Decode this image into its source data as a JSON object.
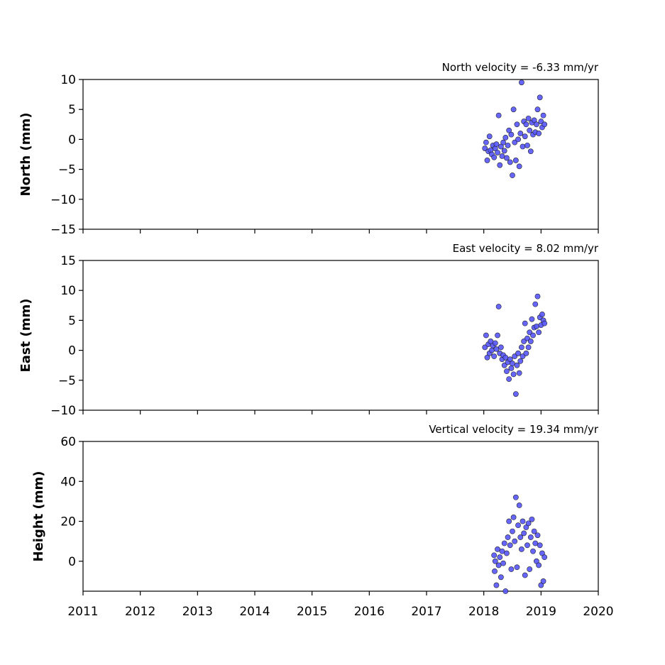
{
  "chart_data": [
    {
      "type": "scatter",
      "annotation": "North velocity = -6.33 mm/yr",
      "ylabel": "North (mm)",
      "color": "#5555ff",
      "xlim": [
        2011,
        2020
      ],
      "xticks": [
        2011,
        2012,
        2013,
        2014,
        2015,
        2016,
        2017,
        2018,
        2019,
        2020
      ],
      "show_xtick_labels": false,
      "ylim": [
        -15,
        10
      ],
      "yticks": [
        {
          "value": -15,
          "label": "−15"
        },
        {
          "value": -10,
          "label": "−10"
        },
        {
          "value": -5,
          "label": "−5"
        },
        0,
        5,
        10
      ],
      "x": [
        2018.02,
        2018.04,
        2018.06,
        2018.08,
        2018.1,
        2018.12,
        2018.14,
        2018.16,
        2018.18,
        2018.2,
        2018.22,
        2018.24,
        2018.26,
        2018.28,
        2018.3,
        2018.32,
        2018.34,
        2018.36,
        2018.38,
        2018.4,
        2018.42,
        2018.44,
        2018.46,
        2018.48,
        2018.5,
        2018.52,
        2018.54,
        2018.56,
        2018.58,
        2018.6,
        2018.62,
        2018.64,
        2018.66,
        2018.68,
        2018.7,
        2018.72,
        2018.74,
        2018.76,
        2018.78,
        2018.8,
        2018.82,
        2018.84,
        2018.86,
        2018.88,
        2018.9,
        2018.92,
        2018.94,
        2018.96,
        2018.98,
        2019.0,
        2019.02,
        2019.04,
        2019.06
      ],
      "values": [
        -1.5,
        -0.5,
        -3.5,
        -2,
        0.5,
        -1.8,
        -2.5,
        -1,
        -3,
        -1.5,
        -0.8,
        -2.2,
        4,
        -4.3,
        -1.2,
        -2.8,
        -0.5,
        -1.9,
        0.3,
        -3.1,
        -1,
        1.5,
        -3.8,
        0.8,
        -6,
        5,
        -0.5,
        -3.5,
        2.5,
        0,
        -4.5,
        1,
        9.5,
        -1.2,
        3,
        0.5,
        2.5,
        -1,
        3.5,
        1.5,
        -2,
        2.8,
        0.8,
        3.2,
        1.2,
        2.5,
        5,
        1,
        7,
        3,
        2,
        4,
        2.5
      ]
    },
    {
      "type": "scatter",
      "annotation": "East velocity = 8.02 mm/yr",
      "ylabel": "East (mm)",
      "color": "#5555ff",
      "xlim": [
        2011,
        2020
      ],
      "xticks": [
        2011,
        2012,
        2013,
        2014,
        2015,
        2016,
        2017,
        2018,
        2019,
        2020
      ],
      "show_xtick_labels": false,
      "ylim": [
        -10,
        15
      ],
      "yticks": [
        {
          "value": -10,
          "label": "−10"
        },
        {
          "value": -5,
          "label": "−5"
        },
        0,
        5,
        10,
        15
      ],
      "x": [
        2018.02,
        2018.04,
        2018.06,
        2018.08,
        2018.1,
        2018.12,
        2018.14,
        2018.16,
        2018.18,
        2018.2,
        2018.22,
        2018.24,
        2018.26,
        2018.28,
        2018.3,
        2018.32,
        2018.34,
        2018.36,
        2018.38,
        2018.4,
        2018.42,
        2018.44,
        2018.46,
        2018.48,
        2018.5,
        2018.52,
        2018.54,
        2018.56,
        2018.58,
        2018.6,
        2018.62,
        2018.64,
        2018.66,
        2018.68,
        2018.7,
        2018.72,
        2018.74,
        2018.76,
        2018.78,
        2018.8,
        2018.82,
        2018.84,
        2018.86,
        2018.88,
        2018.9,
        2018.92,
        2018.94,
        2018.96,
        2018.98,
        2019.0,
        2019.02,
        2019.04,
        2019.06
      ],
      "values": [
        0.5,
        2.5,
        -1.2,
        1,
        -0.5,
        1.5,
        0,
        0.8,
        -1,
        1.2,
        0.2,
        2.5,
        7.3,
        -0.5,
        0.5,
        -1.5,
        -0.8,
        -2.5,
        -1.2,
        -3.5,
        -2,
        -4.8,
        -1.5,
        -3,
        -2.2,
        -4,
        -1,
        -7.3,
        -2.5,
        -0.5,
        -3.8,
        -1.8,
        0.5,
        -1,
        1.5,
        4.5,
        -0.5,
        2,
        0.5,
        3,
        1.5,
        5.2,
        2.5,
        3.8,
        7.7,
        4,
        9,
        3,
        5.5,
        4.2,
        6,
        5,
        4.5
      ]
    },
    {
      "type": "scatter",
      "annotation": "Vertical velocity = 19.34 mm/yr",
      "ylabel": "Height (mm)",
      "color": "#5555ff",
      "xlim": [
        2011,
        2020
      ],
      "xticks": [
        2011,
        2012,
        2013,
        2014,
        2015,
        2016,
        2017,
        2018,
        2019,
        2020
      ],
      "show_xtick_labels": true,
      "ylim": [
        -15,
        60
      ],
      "yticks": [
        0,
        20,
        40,
        60
      ],
      "x": [
        2018.18,
        2018.19,
        2018.2,
        2018.22,
        2018.24,
        2018.26,
        2018.28,
        2018.3,
        2018.32,
        2018.34,
        2018.36,
        2018.38,
        2018.4,
        2018.42,
        2018.44,
        2018.46,
        2018.48,
        2018.5,
        2018.52,
        2018.54,
        2018.56,
        2018.58,
        2018.6,
        2018.62,
        2018.64,
        2018.66,
        2018.68,
        2018.7,
        2018.72,
        2018.74,
        2018.76,
        2018.78,
        2018.8,
        2018.82,
        2018.84,
        2018.86,
        2018.88,
        2018.9,
        2018.92,
        2018.94,
        2018.96,
        2018.98,
        2019.0,
        2019.02,
        2019.04,
        2019.06
      ],
      "values": [
        3,
        -5,
        0,
        -12,
        6,
        -2,
        2,
        -8,
        5,
        -1,
        9,
        -15,
        4,
        12,
        20,
        8,
        -4,
        15,
        22,
        10,
        32,
        -3,
        18,
        28,
        12,
        6,
        20,
        14,
        -7,
        17,
        8,
        19,
        -4,
        12,
        21,
        5,
        15,
        9,
        0,
        13,
        -2,
        8,
        -12,
        4,
        -10,
        2
      ]
    }
  ]
}
